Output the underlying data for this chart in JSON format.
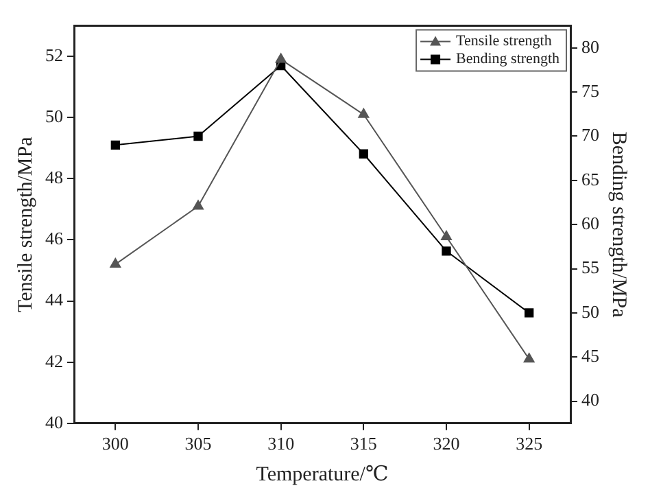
{
  "chart_data": {
    "type": "line",
    "xlabel": "Temperature/℃",
    "ylabel": "Tensile strength/MPa",
    "y2label": "Bending strength/MPa",
    "x": [
      300,
      305,
      310,
      315,
      320,
      325
    ],
    "series": [
      {
        "name": "Tensile strength",
        "color": "#555555",
        "marker": "triangle",
        "values": [
          45.2,
          47.1,
          51.9,
          50.1,
          46.1,
          42.1
        ]
      },
      {
        "name": "Bending strength",
        "color": "#000000",
        "marker": "square",
        "axis": "y2",
        "values": [
          69,
          70,
          78,
          68,
          57,
          50
        ]
      }
    ],
    "xlim": [
      297.5,
      327.5
    ],
    "xticks": [
      300,
      305,
      310,
      315,
      320,
      325
    ],
    "ylim": [
      40,
      53
    ],
    "yticks": [
      40,
      42,
      44,
      46,
      48,
      50,
      52
    ],
    "y2lim": [
      37.5,
      82.5
    ],
    "y2ticks": [
      40,
      45,
      50,
      55,
      60,
      65,
      70,
      75,
      80
    ],
    "grid": false,
    "legend": "top right",
    "line_style": "solid"
  }
}
